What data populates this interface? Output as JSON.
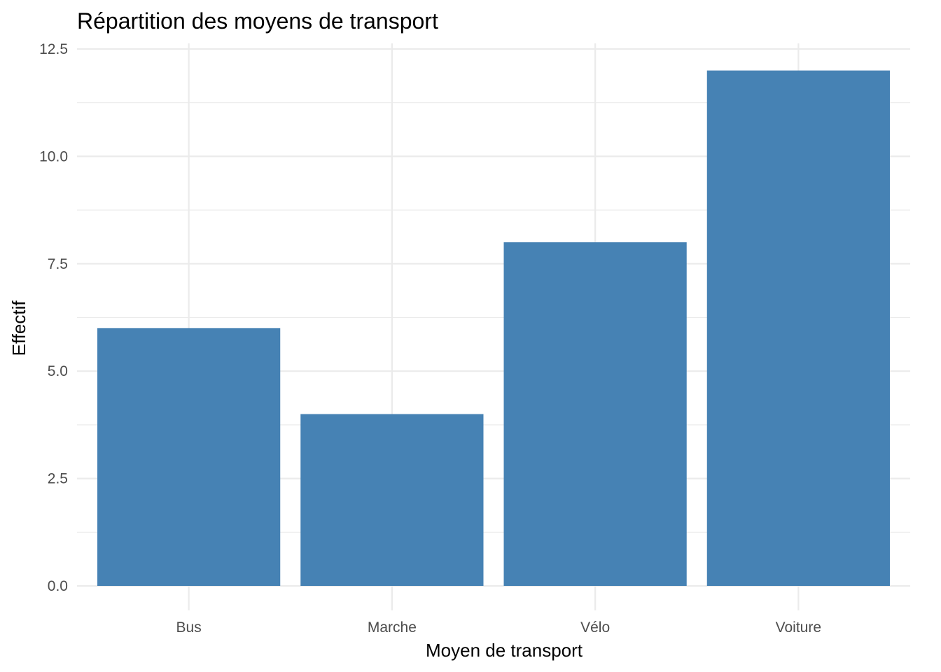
{
  "chart_data": {
    "type": "bar",
    "title": "Répartition des moyens de transport",
    "xlabel": "Moyen de transport",
    "ylabel": "Effectif",
    "categories": [
      "Bus",
      "Marche",
      "Vélo",
      "Voiture"
    ],
    "values": [
      6,
      4,
      8,
      12
    ],
    "ylim": [
      0,
      12.5
    ],
    "yticks": [
      0,
      2.5,
      5,
      7.5,
      10,
      12.5
    ],
    "ytick_labels": [
      "0.0",
      "2.5",
      "5.0",
      "7.5",
      "10.0",
      "12.5"
    ],
    "bar_color": "#4682b4",
    "grid": true,
    "legend": "none"
  }
}
